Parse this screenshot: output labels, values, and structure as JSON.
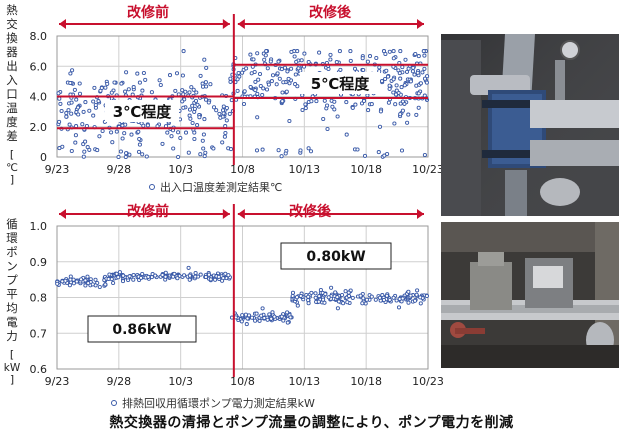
{
  "caption": "熱交換器の清掃とポンプ流量の調整により、ポンプ電力を削減",
  "colors": {
    "accent": "#c8102e",
    "point": "#3a5aa8",
    "point_fill": "#ffffff",
    "grid": "#cfcfcf",
    "axis": "#555555",
    "text": "#222222"
  },
  "chart_data": [
    {
      "type": "scatter",
      "ylabel": "熱交換器出入口温度差",
      "ylabel_unit": "℃",
      "legend": "出入口温度差測定結果℃",
      "ylim": [
        0,
        8
      ],
      "y_ticks": [
        "0",
        "2.0",
        "4.0",
        "6.0",
        "8.0"
      ],
      "x_ticks": [
        "9/23",
        "9/28",
        "10/3",
        "10/8",
        "10/13",
        "10/18",
        "10/23"
      ],
      "xlim": [
        "9/23",
        "10/23"
      ],
      "change_date": "10/7",
      "before_label": "改修前",
      "after_label": "改修後",
      "before_band": {
        "label": "3℃程度",
        "y_low": 1.9,
        "y_high": 4.0
      },
      "after_band": {
        "label": "5℃程度",
        "y_low": 3.9,
        "y_high": 6.1
      },
      "grid": true,
      "legend_position": "bottom",
      "series": [
        {
          "period": "before",
          "x_range": [
            "9/23",
            "10/7"
          ],
          "y_center": 3.1,
          "y_spread": 1.2,
          "y_min": 0.0,
          "y_max": 7.0
        },
        {
          "period": "after",
          "x_range": [
            "10/7",
            "10/23"
          ],
          "y_center": 4.9,
          "y_spread": 1.2,
          "y_min": 0.0,
          "y_max": 7.0
        }
      ]
    },
    {
      "type": "scatter",
      "ylabel": "循環ポンプ平均電力",
      "ylabel_unit": "kW",
      "legend": "排熱回収用循環ポンプ電力測定結果kW",
      "ylim": [
        0.6,
        1.0
      ],
      "y_ticks": [
        "0.6",
        "0.7",
        "0.8",
        "0.9",
        "1.0"
      ],
      "x_ticks": [
        "9/23",
        "9/28",
        "10/3",
        "10/8",
        "10/13",
        "10/18",
        "10/23"
      ],
      "xlim": [
        "9/23",
        "10/23"
      ],
      "change_date": "10/7",
      "before_label": "改修前",
      "after_label": "改修後",
      "before_value_label": "0.86kW",
      "after_value_label": "0.80kW",
      "grid": true,
      "legend_position": "bottom",
      "series": [
        {
          "period": "before-1",
          "x_range": [
            "9/23",
            "9/27"
          ],
          "y_center": 0.845,
          "y_spread": 0.006
        },
        {
          "period": "before-2",
          "x_range": [
            "9/27",
            "10/7"
          ],
          "y_center": 0.858,
          "y_spread": 0.006
        },
        {
          "period": "after-1",
          "x_range": [
            "10/7",
            "10/12"
          ],
          "y_center": 0.745,
          "y_spread": 0.006
        },
        {
          "period": "after-2",
          "x_range": [
            "10/12",
            "10/23"
          ],
          "y_center": 0.8,
          "y_spread": 0.008
        }
      ]
    }
  ],
  "photos": [
    {
      "icon": "heat-exchanger-photo",
      "palette": [
        "#3b3c3f",
        "#7a8088",
        "#2f4a78",
        "#b9bcc2"
      ]
    },
    {
      "icon": "pump-photo",
      "palette": [
        "#3c3a38",
        "#8a8a86",
        "#a04a40",
        "#c7c9cc"
      ]
    }
  ]
}
